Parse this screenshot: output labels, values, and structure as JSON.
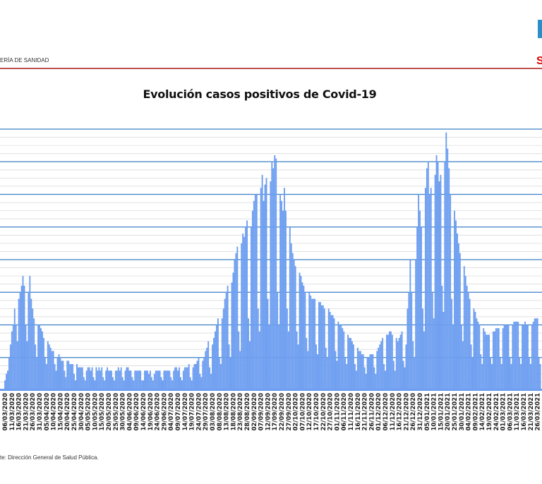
{
  "header": {
    "org_text": "ERÍA DE SANIDAD",
    "logo_fragment": "S"
  },
  "footer": {
    "source": "te: Dirección General de Salud Pública."
  },
  "colors": {
    "bars": "#6d9ef0",
    "gridline": "#3b7fc4",
    "minor_gridline": "#dcdcdc",
    "header_rule": "#c0504d"
  },
  "chart_data": {
    "type": "bar",
    "title": "Evolución casos positivos de Covid-19",
    "xlabel": "",
    "ylabel": "",
    "value_units": "relative (major gridline units x10, no axis labels shown)",
    "ylim": [
      0,
      80
    ],
    "major_grid_step": 10,
    "grid": true,
    "start_date": "06/03/2020",
    "x_tick_step_days": 5,
    "x_ticks": [
      "06/03/2020",
      "11/03/2020",
      "16/03/2020",
      "21/03/2020",
      "26/03/2020",
      "31/03/2020",
      "05/04/2020",
      "10/04/2020",
      "15/04/2020",
      "20/04/2020",
      "25/04/2020",
      "30/04/2020",
      "05/05/2020",
      "10/05/2020",
      "15/05/2020",
      "20/05/2020",
      "25/05/2020",
      "30/05/2020",
      "04/06/2020",
      "09/06/2020",
      "14/06/2020",
      "19/06/2020",
      "24/06/2020",
      "29/06/2020",
      "04/07/2020",
      "09/07/2020",
      "14/07/2020",
      "19/07/2020",
      "24/07/2020",
      "29/07/2020",
      "03/08/2020",
      "08/08/2020",
      "13/08/2020",
      "18/08/2020",
      "23/08/2020",
      "28/08/2020",
      "02/09/2020",
      "07/09/2020",
      "12/09/2020",
      "17/09/2020",
      "22/09/2020",
      "27/09/2020",
      "02/10/2020",
      "07/10/2020",
      "12/10/2020",
      "17/10/2020",
      "22/10/2020",
      "27/10/2020",
      "01/11/2020",
      "06/11/2020",
      "11/11/2020",
      "16/11/2020",
      "21/11/2020",
      "26/11/2020",
      "01/12/2020",
      "06/12/2020",
      "11/12/2020",
      "16/12/2020",
      "21/12/2020",
      "26/12/2020",
      "31/12/2020",
      "05/01/2021",
      "10/01/2021",
      "15/01/2021",
      "20/01/2021",
      "25/01/2021",
      "30/01/2021",
      "04/02/2021",
      "09/02/2021",
      "14/02/2021",
      "19/02/2021",
      "24/02/2021",
      "01/03/2021",
      "06/03/2021",
      "11/03/2021",
      "16/03/2021",
      "21/03/2021",
      "26/03/2021"
    ],
    "daily_values": [
      3,
      5,
      6,
      10,
      14,
      18,
      20,
      25,
      20,
      15,
      28,
      30,
      32,
      35,
      32,
      20,
      15,
      30,
      35,
      28,
      25,
      22,
      14,
      10,
      20,
      20,
      19,
      18,
      16,
      10,
      8,
      15,
      14,
      13,
      12,
      12,
      8,
      6,
      10,
      11,
      10,
      9,
      9,
      6,
      4,
      9,
      9,
      8,
      8,
      8,
      5,
      3,
      8,
      7,
      7,
      7,
      7,
      4,
      3,
      6,
      7,
      7,
      6,
      7,
      4,
      3,
      7,
      6,
      7,
      6,
      7,
      4,
      3,
      6,
      7,
      6,
      6,
      6,
      4,
      3,
      6,
      6,
      7,
      6,
      7,
      4,
      3,
      6,
      7,
      7,
      6,
      6,
      4,
      3,
      6,
      6,
      6,
      6,
      6,
      3,
      3,
      6,
      6,
      6,
      5,
      6,
      4,
      3,
      5,
      6,
      6,
      6,
      6,
      4,
      3,
      6,
      6,
      6,
      6,
      6,
      4,
      3,
      6,
      7,
      7,
      6,
      7,
      4,
      3,
      6,
      7,
      7,
      7,
      8,
      4,
      3,
      7,
      8,
      8,
      9,
      10,
      5,
      4,
      9,
      10,
      12,
      13,
      15,
      7,
      5,
      14,
      16,
      18,
      20,
      22,
      10,
      8,
      22,
      25,
      28,
      30,
      32,
      14,
      10,
      33,
      36,
      40,
      42,
      44,
      18,
      12,
      45,
      48,
      47,
      50,
      52,
      22,
      15,
      50,
      55,
      58,
      60,
      60,
      25,
      18,
      62,
      66,
      58,
      63,
      65,
      28,
      20,
      64,
      70,
      68,
      72,
      71,
      30,
      20,
      60,
      58,
      55,
      62,
      55,
      25,
      18,
      50,
      45,
      42,
      40,
      38,
      18,
      14,
      36,
      35,
      33,
      32,
      30,
      16,
      12,
      30,
      29,
      28,
      28,
      28,
      14,
      11,
      27,
      27,
      26,
      26,
      25,
      13,
      10,
      25,
      24,
      23,
      23,
      22,
      12,
      9,
      21,
      20,
      20,
      19,
      18,
      10,
      8,
      17,
      16,
      16,
      15,
      14,
      8,
      6,
      13,
      12,
      12,
      11,
      11,
      7,
      5,
      10,
      10,
      11,
      11,
      11,
      7,
      5,
      12,
      13,
      14,
      15,
      16,
      8,
      6,
      17,
      17,
      18,
      18,
      17,
      9,
      6,
      16,
      15,
      16,
      17,
      18,
      9,
      7,
      14,
      25,
      30,
      40,
      30,
      15,
      10,
      40,
      50,
      60,
      55,
      50,
      25,
      18,
      62,
      68,
      70,
      60,
      62,
      30,
      22,
      66,
      72,
      70,
      64,
      66,
      32,
      24,
      70,
      79,
      74,
      68,
      60,
      28,
      20,
      55,
      52,
      48,
      45,
      42,
      20,
      15,
      38,
      35,
      32,
      30,
      28,
      14,
      10,
      25,
      24,
      22,
      21,
      20,
      11,
      8,
      19,
      18,
      17,
      17,
      17,
      10,
      8,
      18,
      18,
      19,
      19,
      19,
      10,
      8,
      19,
      20,
      20,
      20,
      20,
      10,
      8,
      20,
      21,
      21,
      21,
      21,
      10,
      8,
      20,
      20,
      21,
      20,
      20,
      10,
      8,
      20,
      21,
      22,
      22,
      22,
      10,
      8
    ]
  }
}
